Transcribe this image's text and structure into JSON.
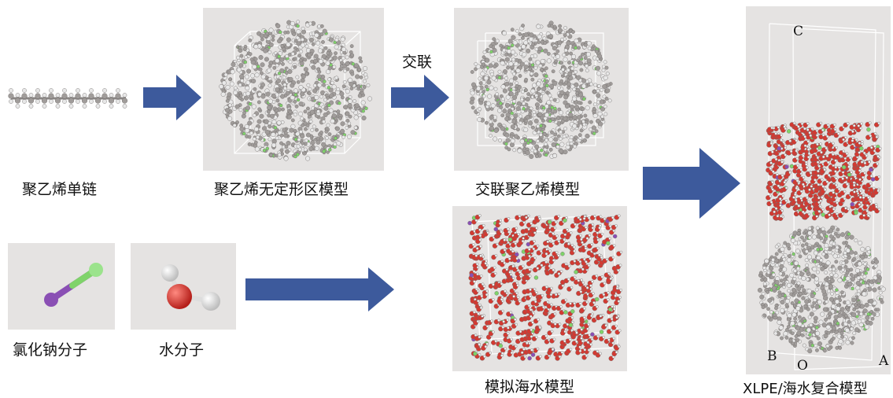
{
  "colors": {
    "arrow": "#3d5a9c",
    "carbon": "#a09c9a",
    "hydrogen": "#e8e8e8",
    "oxygen": "#d23a32",
    "chlorine": "#7fd36a",
    "sodium": "#8a4fb4",
    "panel": "#e5e3e2"
  },
  "labels": {
    "pe_chain": "聚乙烯单链",
    "pe_amorphous": "聚乙烯无定形区模型",
    "crosslink_step": "交联",
    "xlpe_model": "交联聚乙烯模型",
    "nacl": "氯化钠分子",
    "water": "水分子",
    "seawater_model": "模拟海水模型",
    "composite_model": "XLPE/海水复合模型"
  },
  "axes": {
    "c": "C",
    "b": "B",
    "o": "O",
    "a": "A"
  },
  "box_marks": {
    "a_small": "A",
    "c_small": "C"
  }
}
